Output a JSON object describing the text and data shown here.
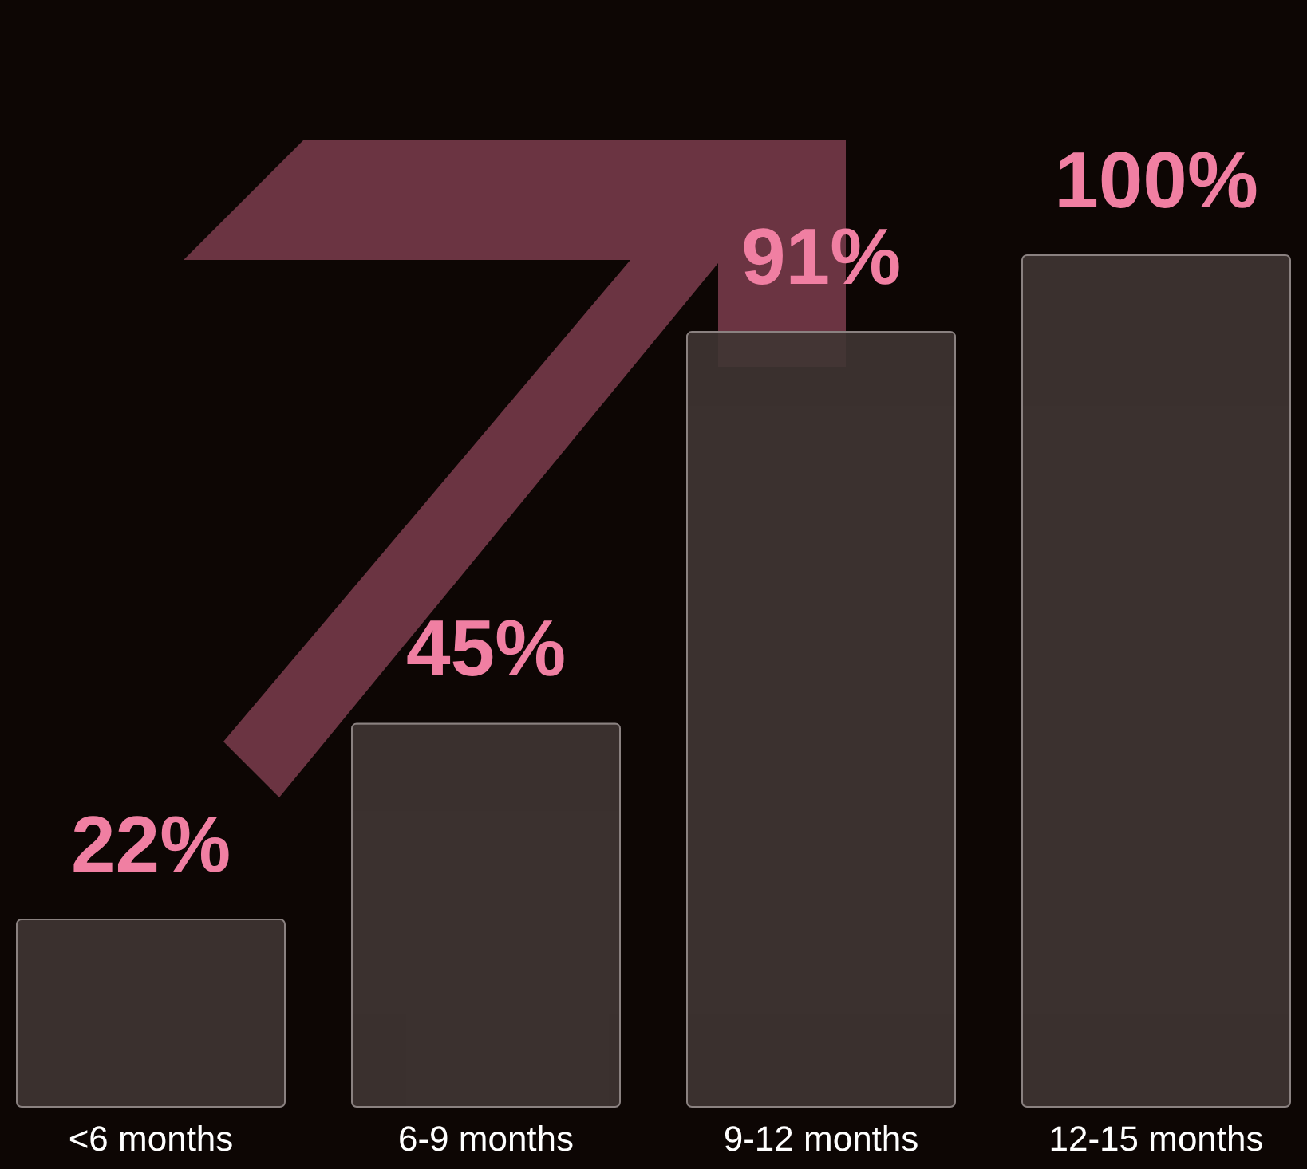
{
  "chart_data": {
    "type": "bar",
    "categories": [
      "<6 months",
      "6-9 months",
      "9-12 months",
      "12-15 months"
    ],
    "values": [
      22,
      45,
      91,
      100
    ],
    "value_labels": [
      "22%",
      "45%",
      "91%",
      "100%"
    ],
    "color": "#403634"
  }
}
